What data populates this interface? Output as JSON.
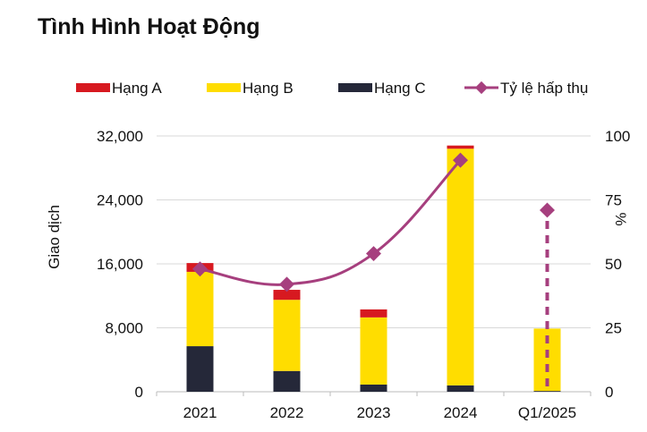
{
  "chart_data": {
    "type": "bar",
    "title": "Tình Hình Hoạt Động",
    "categories": [
      "2021",
      "2022",
      "2023",
      "2024",
      "Q1/2025"
    ],
    "stacked": true,
    "series": [
      {
        "name": "Hạng A",
        "type": "bar",
        "color": "#D71920",
        "values": [
          1100,
          1250,
          1000,
          400,
          0
        ]
      },
      {
        "name": "Hạng B",
        "type": "bar",
        "color": "#FFDD00",
        "values": [
          9300,
          8900,
          8400,
          29600,
          7800
        ]
      },
      {
        "name": "Hạng C",
        "type": "bar",
        "color": "#252839",
        "values": [
          5700,
          2600,
          900,
          800,
          100
        ]
      },
      {
        "name": "Tỷ lệ hấp thụ",
        "type": "line",
        "axis": "right",
        "color": "#A63F7E",
        "values": [
          48,
          42,
          54,
          90.5,
          71
        ],
        "dashed_last_point": true
      }
    ],
    "ylabel": "Giao dịch",
    "ylabel_right": "%",
    "ylim": [
      0,
      32000
    ],
    "yticks": [
      "0",
      "8,000",
      "16,000",
      "24,000",
      "32,000"
    ],
    "ylim_right": [
      0,
      100
    ],
    "yticks_right": [
      "0",
      "25",
      "50",
      "75",
      "100"
    ],
    "grid": true,
    "legend_placement": "top"
  }
}
